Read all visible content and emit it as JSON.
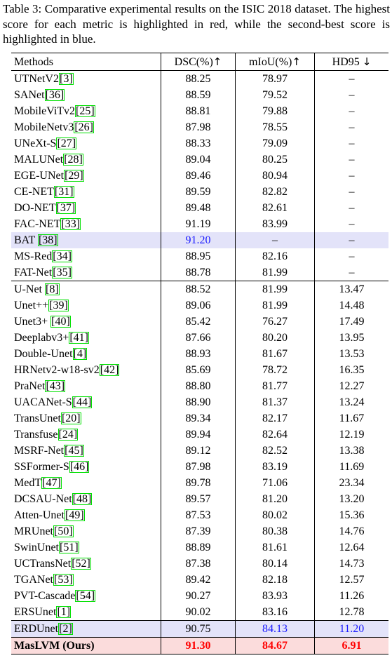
{
  "caption": "Table 3: Comparative experimental results on the ISIC 2018 dataset. The highest score for each metric is highlighted in red, while the second-best score is highlighted in blue.",
  "headers": {
    "methods": "Methods",
    "dsc": "DSC(%)",
    "dsc_arrow": "↑",
    "miou": "mIoU(%)",
    "miou_arrow": "↑",
    "hd95": "HD95",
    "hd95_arrow": "↓"
  },
  "colors": {
    "best": "#ff0000",
    "second": "#1a1aff",
    "blue_row": "#e3e3f9",
    "pink_row": "#fbdcdc",
    "ref_box": "#00e000"
  },
  "rows": [
    {
      "name": "UTNetV2",
      "ref": "3",
      "sp": false,
      "dsc": "88.25",
      "miou": "78.97",
      "hd": "–"
    },
    {
      "name": "SANet",
      "ref": "36",
      "sp": false,
      "dsc": "88.59",
      "miou": "79.52",
      "hd": "–"
    },
    {
      "name": "MobileViTv2",
      "ref": "25",
      "sp": false,
      "dsc": "88.81",
      "miou": "79.88",
      "hd": "–"
    },
    {
      "name": "MobileNetv3",
      "ref": "26",
      "sp": false,
      "dsc": "87.98",
      "miou": "78.55",
      "hd": "–"
    },
    {
      "name": "UNeXt-S",
      "ref": "27",
      "sp": false,
      "dsc": "88.33",
      "miou": "79.09",
      "hd": "–"
    },
    {
      "name": "MALUNet",
      "ref": "28",
      "sp": false,
      "dsc": "89.04",
      "miou": "80.25",
      "hd": "–"
    },
    {
      "name": "EGE-UNet",
      "ref": "29",
      "sp": false,
      "dsc": "89.46",
      "miou": "80.94",
      "hd": "–"
    },
    {
      "name": "CE-NET",
      "ref": "31",
      "sp": false,
      "dsc": "89.59",
      "miou": "82.82",
      "hd": "–"
    },
    {
      "name": "DO-NET",
      "ref": "37",
      "sp": false,
      "dsc": "89.48",
      "miou": "82.61",
      "hd": "–"
    },
    {
      "name": "FAC-NET",
      "ref": "33",
      "sp": false,
      "dsc": "91.19",
      "miou": "83.99",
      "hd": "–"
    },
    {
      "name": "BAT",
      "ref": "38",
      "sp": true,
      "dsc": "91.20",
      "miou": "–",
      "hd": "–",
      "row": "blue",
      "dsc_color": "blue"
    },
    {
      "name": "MS-Red",
      "ref": "34",
      "sp": false,
      "dsc": "88.95",
      "miou": "82.16",
      "hd": "–"
    },
    {
      "name": "FAT-Net",
      "ref": "35",
      "sp": false,
      "dsc": "88.78",
      "miou": "81.99",
      "hd": "–"
    },
    {
      "name": "U-Net",
      "ref": "8",
      "sp": true,
      "dsc": "88.52",
      "miou": "81.99",
      "hd": "13.47",
      "group_start": true
    },
    {
      "name": "Unet++",
      "ref": "39",
      "sp": false,
      "dsc": "89.06",
      "miou": "81.99",
      "hd": "14.48"
    },
    {
      "name": "Unet3+",
      "ref": "40",
      "sp": true,
      "dsc": "85.42",
      "miou": "76.27",
      "hd": "17.49"
    },
    {
      "name": "Deeplabv3+",
      "ref": "41",
      "sp": false,
      "dsc": "87.66",
      "miou": "80.20",
      "hd": "13.95"
    },
    {
      "name": "Double-Unet",
      "ref": "4",
      "sp": false,
      "dsc": "88.93",
      "miou": "81.67",
      "hd": "13.53"
    },
    {
      "name": "HRNetv2-w18-sv2",
      "ref": "42",
      "sp": false,
      "dsc": "85.69",
      "miou": "78.72",
      "hd": "16.35"
    },
    {
      "name": "PraNet",
      "ref": "43",
      "sp": false,
      "dsc": "88.80",
      "miou": "81.77",
      "hd": "12.27"
    },
    {
      "name": "UACANet-S",
      "ref": "44",
      "sp": false,
      "dsc": "88.90",
      "miou": "81.37",
      "hd": "13.24"
    },
    {
      "name": "TransUnet",
      "ref": "20",
      "sp": false,
      "dsc": "89.34",
      "miou": "82.17",
      "hd": "11.67"
    },
    {
      "name": "Transfuse",
      "ref": "24",
      "sp": false,
      "dsc": "89.94",
      "miou": "82.64",
      "hd": "12.19"
    },
    {
      "name": "MSRF-Net",
      "ref": "45",
      "sp": false,
      "dsc": "89.12",
      "miou": "82.52",
      "hd": "13.38"
    },
    {
      "name": "SSFormer-S",
      "ref": "46",
      "sp": false,
      "dsc": "87.98",
      "miou": "83.19",
      "hd": "11.69"
    },
    {
      "name": "MedT",
      "ref": "47",
      "sp": false,
      "dsc": "89.78",
      "miou": "71.06",
      "hd": "23.34"
    },
    {
      "name": "DCSAU-Net",
      "ref": "48",
      "sp": false,
      "dsc": "89.57",
      "miou": "81.20",
      "hd": "13.20"
    },
    {
      "name": "Atten-Unet",
      "ref": "49",
      "sp": false,
      "dsc": "87.53",
      "miou": "80.02",
      "hd": "15.36"
    },
    {
      "name": "MRUnet",
      "ref": "50",
      "sp": false,
      "dsc": "87.39",
      "miou": "80.38",
      "hd": "14.76"
    },
    {
      "name": "SwinUnet",
      "ref": "51",
      "sp": false,
      "dsc": "88.89",
      "miou": "81.61",
      "hd": "12.64"
    },
    {
      "name": "UCTransNet",
      "ref": "52",
      "sp": false,
      "dsc": "87.38",
      "miou": "80.14",
      "hd": "14.73"
    },
    {
      "name": "TGANet",
      "ref": "53",
      "sp": false,
      "dsc": "89.42",
      "miou": "82.18",
      "hd": "12.57"
    },
    {
      "name": "PVT-Cascade",
      "ref": "54",
      "sp": false,
      "dsc": "90.27",
      "miou": "83.93",
      "hd": "11.26"
    },
    {
      "name": "ERSUnet",
      "ref": "1",
      "sp": false,
      "dsc": "90.02",
      "miou": "83.16",
      "hd": "12.78"
    },
    {
      "name": "ERDUnet",
      "ref": "2",
      "sp": false,
      "dsc": "90.75",
      "miou": "84.13",
      "hd": "11.20",
      "row": "blue",
      "miou_color": "blue",
      "hd_color": "blue",
      "group_start": true
    },
    {
      "name": "MasLVM (Ours)",
      "ref": "",
      "sp": false,
      "dsc": "91.30",
      "miou": "84.67",
      "hd": "6.91",
      "row": "pink",
      "dsc_color": "red",
      "miou_color": "red",
      "hd_color": "red",
      "group_start": true,
      "last": true
    }
  ]
}
